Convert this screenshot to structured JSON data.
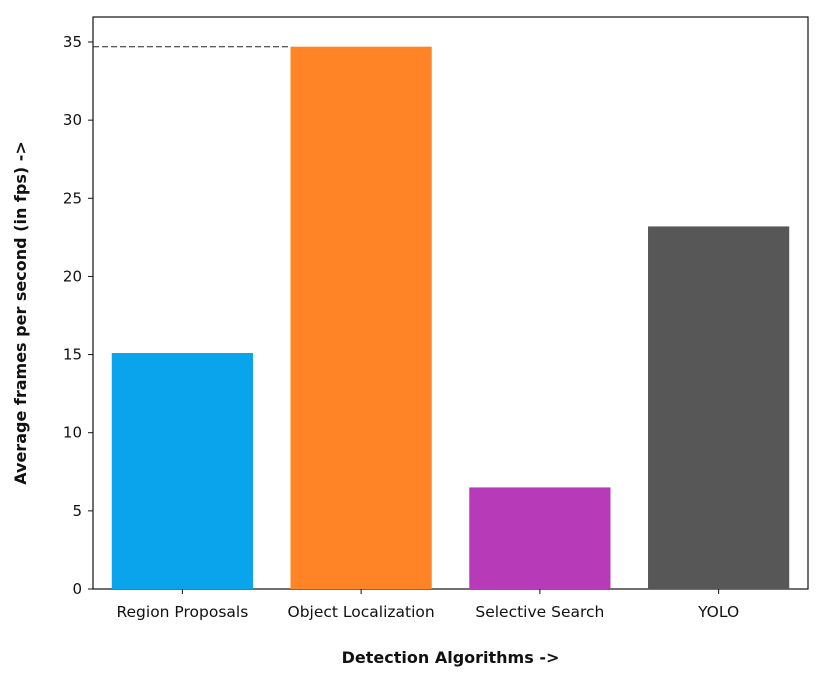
{
  "chart_data": {
    "type": "bar",
    "categories": [
      "Region Proposals",
      "Object Localization",
      "Selective Search",
      "YOLO"
    ],
    "values": [
      15.1,
      34.7,
      6.5,
      23.2
    ],
    "colors": [
      "#0aa4ec",
      "#ff8426",
      "#b73ab9",
      "#575757"
    ],
    "xlabel": "Detection Algorithms ->",
    "ylabel": "Average frames per second (in fps) ->",
    "ylim": [
      0,
      36.6
    ],
    "yticks": [
      0,
      5,
      10,
      15,
      20,
      25,
      30,
      35
    ],
    "grid": false,
    "reference_line": {
      "value": 34.7,
      "style": "dashed"
    }
  }
}
